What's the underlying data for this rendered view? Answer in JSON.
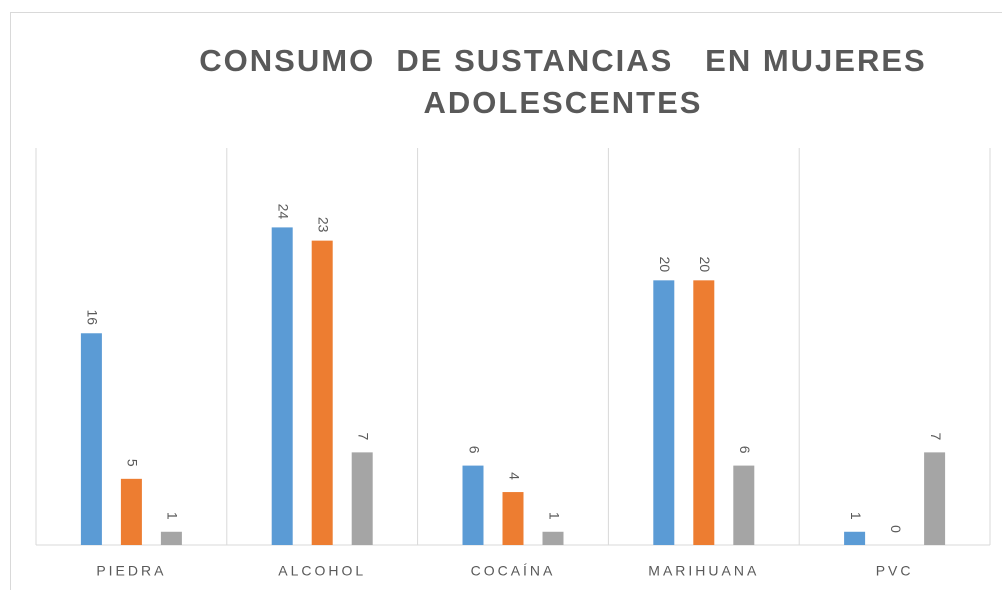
{
  "chart_data": {
    "type": "bar",
    "title": "CONSUMO  DE SUSTANCIAS   EN MUJERES ADOLESCENTES",
    "categories": [
      "PIEDRA",
      "ALCOHOL",
      "COCAÍNA",
      "MARIHUANA",
      "PVC"
    ],
    "series": [
      {
        "color": "#5b9bd5",
        "values": [
          16,
          24,
          6,
          20,
          1
        ]
      },
      {
        "color": "#ed7d31",
        "values": [
          5,
          23,
          4,
          20,
          0
        ]
      },
      {
        "color": "#a5a5a5",
        "values": [
          1,
          7,
          1,
          6,
          7
        ]
      }
    ],
    "ylim": [
      0,
      30
    ]
  }
}
